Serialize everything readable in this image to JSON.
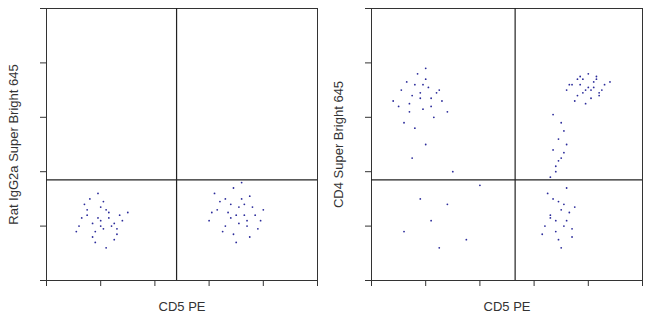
{
  "chart_data": [
    {
      "type": "scatter",
      "x_label": "CD5 PE",
      "y_label": "Rat IgG2a Super Bright 645",
      "xlim": [
        0,
        100
      ],
      "ylim": [
        0,
        100
      ],
      "xticks": [
        0,
        20,
        40,
        60,
        80,
        100
      ],
      "yticks": [
        0,
        20,
        40,
        60,
        80,
        100
      ],
      "tick_labels": false,
      "color": "#2b2b9a",
      "marker": "dot",
      "gate_x": 48,
      "gate_y": 37,
      "x": [
        12,
        15,
        18,
        20,
        22,
        25,
        14,
        17,
        19,
        21,
        23,
        26,
        28,
        16,
        18,
        20,
        24,
        27,
        13,
        22,
        19,
        25,
        30,
        11,
        17,
        21,
        23,
        15,
        20,
        26,
        60,
        63,
        66,
        68,
        70,
        72,
        74,
        76,
        78,
        62,
        65,
        67,
        69,
        71,
        73,
        75,
        77,
        80,
        64,
        70,
        72,
        68,
        74,
        66,
        79,
        61,
        71,
        75,
        69,
        73
      ],
      "y": [
        20,
        24,
        18,
        22,
        26,
        21,
        28,
        16,
        23,
        19,
        25,
        17,
        22,
        30,
        14,
        27,
        20,
        24,
        23,
        12,
        32,
        15,
        25,
        18,
        21,
        29,
        23,
        26,
        20,
        19,
        22,
        26,
        20,
        28,
        24,
        30,
        22,
        27,
        19,
        32,
        18,
        25,
        34,
        21,
        28,
        16,
        24,
        26,
        29,
        14,
        36,
        23,
        20,
        30,
        22,
        25,
        27,
        31,
        17,
        24
      ]
    },
    {
      "type": "scatter",
      "x_label": "CD5 PE",
      "y_label": "CD4 Super Bright 645",
      "xlim": [
        0,
        100
      ],
      "ylim": [
        0,
        100
      ],
      "xticks": [
        0,
        20,
        40,
        60,
        80,
        100
      ],
      "yticks": [
        0,
        20,
        40,
        60,
        80,
        100
      ],
      "tick_labels": false,
      "color": "#2b2b9a",
      "marker": "dot",
      "gate_x": 53,
      "gate_y": 37,
      "x": [
        8,
        11,
        14,
        16,
        18,
        20,
        22,
        24,
        12,
        15,
        17,
        19,
        21,
        23,
        26,
        10,
        13,
        18,
        20,
        25,
        28,
        16,
        22,
        14,
        19,
        72,
        74,
        76,
        78,
        80,
        82,
        84,
        86,
        75,
        77,
        79,
        81,
        83,
        85,
        73,
        78,
        80,
        82,
        88,
        76,
        84,
        79,
        81,
        77,
        83,
        64,
        66,
        68,
        70,
        72,
        74,
        67,
        69,
        71,
        73,
        65,
        70,
        72,
        68,
        75,
        63,
        71,
        69,
        74,
        66,
        66,
        68,
        70,
        67,
        69,
        71,
        68,
        70,
        72,
        69,
        67,
        71,
        12,
        18,
        25,
        30,
        15,
        22,
        35,
        40,
        28,
        20
      ],
      "y": [
        66,
        70,
        62,
        72,
        67,
        74,
        64,
        69,
        58,
        68,
        76,
        63,
        71,
        60,
        66,
        64,
        73,
        69,
        78,
        70,
        62,
        56,
        67,
        65,
        72,
        70,
        72,
        68,
        74,
        71,
        73,
        69,
        72,
        66,
        75,
        70,
        67,
        74,
        70,
        72,
        69,
        76,
        71,
        73,
        74,
        68,
        65,
        70,
        72,
        75,
        20,
        24,
        18,
        26,
        22,
        19,
        30,
        15,
        28,
        25,
        32,
        12,
        34,
        22,
        27,
        17,
        20,
        29,
        16,
        23,
        38,
        42,
        45,
        48,
        52,
        55,
        40,
        58,
        50,
        44,
        61,
        47,
        18,
        30,
        12,
        40,
        45,
        22,
        15,
        35,
        28,
        50
      ]
    }
  ]
}
